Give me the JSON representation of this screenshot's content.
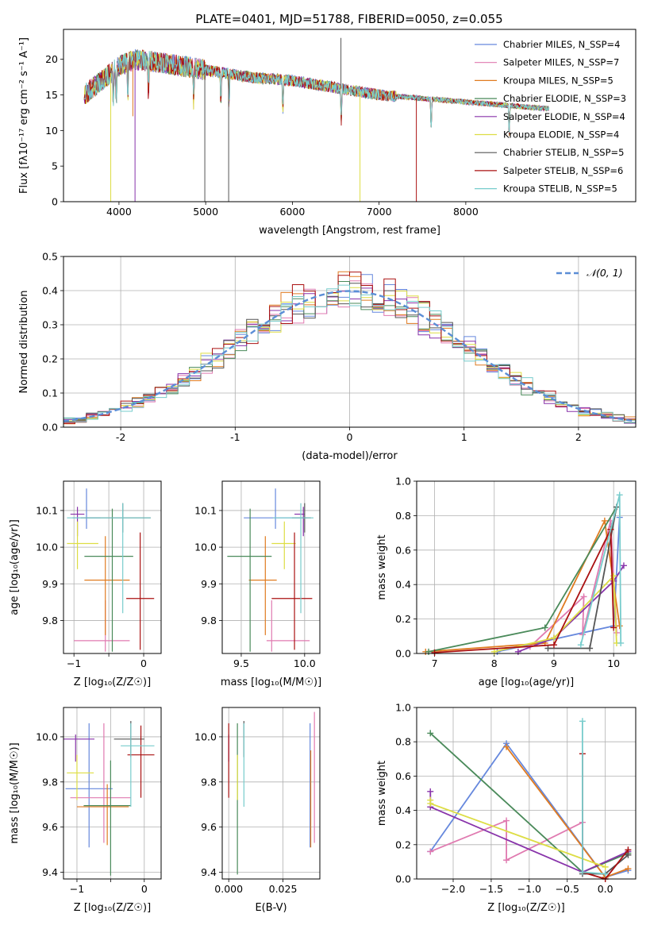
{
  "figure": {
    "title": "PLATE=0401, MJD=51788, FIBERID=0050, z=0.055"
  },
  "colors": [
    "#6688dd",
    "#e07ab0",
    "#e07b20",
    "#4a8a5a",
    "#8833aa",
    "#dddd44",
    "#555555",
    "#aa1111",
    "#77cccc"
  ],
  "chart_data": [
    {
      "id": "spectrum",
      "type": "line",
      "xlabel": "wavelength [Angstrom, rest frame]",
      "ylabel": "Flux [fλ10⁻¹⁷ erg cm⁻² s⁻¹ A⁻¹]",
      "xlim": [
        3360,
        9960
      ],
      "ylim": [
        0,
        24.2
      ],
      "xticks": [
        4000,
        5000,
        6000,
        7000,
        8000
      ],
      "yticks": [
        0,
        5,
        10,
        15,
        20
      ],
      "grid": false,
      "legend_position": "top-right",
      "continuum": {
        "x": [
          3600,
          3800,
          4000,
          4200,
          4500,
          5000,
          5500,
          6000,
          6500,
          7000,
          7500,
          8000,
          8500,
          9000,
          9960
        ],
        "y": [
          15,
          17,
          19,
          20,
          19.5,
          18.5,
          17.5,
          17,
          16,
          15,
          14.5,
          14,
          13.5,
          13,
          12
        ]
      },
      "series": [
        {
          "name": "Chabrier MILES, N_SSP=4"
        },
        {
          "name": "Salpeter MILES, N_SSP=7"
        },
        {
          "name": "Kroupa MILES, N_SSP=5"
        },
        {
          "name": "Chabrier ELODIE, N_SSP=3"
        },
        {
          "name": "Salpeter ELODIE, N_SSP=4"
        },
        {
          "name": "Kroupa ELODIE, N_SSP=4"
        },
        {
          "name": "Chabrier STELIB, N_SSP=5"
        },
        {
          "name": "Salpeter STELIB, N_SSP=6"
        },
        {
          "name": "Kroupa STELIB, N_SSP=5"
        }
      ]
    },
    {
      "id": "residuals",
      "type": "step",
      "xlabel": "(data-model)/error",
      "ylabel": "Normed distribution",
      "xlim": [
        -2.5,
        2.5
      ],
      "ylim": [
        0,
        0.5
      ],
      "xticks": [
        -2,
        -1,
        0,
        1,
        2
      ],
      "yticks": [
        0.0,
        0.1,
        0.2,
        0.3,
        0.4,
        0.5
      ],
      "grid": true,
      "legend_position": "top-right",
      "reference": {
        "name": "𝒩(0, 1)",
        "mean": 0,
        "sigma": 1
      },
      "bin_width": 0.1
    },
    {
      "id": "age_vs_Z",
      "type": "errorbar",
      "xlabel": "Z [log₁₀(Z/Z☉)]",
      "ylabel": "age  [log₁₀(age/yr)]",
      "xlim": [
        -1.15,
        0.25
      ],
      "ylim": [
        9.71,
        10.18
      ],
      "xticks": [
        -1,
        -0.5,
        0
      ],
      "xticklabels": [
        "−1",
        "",
        "0"
      ],
      "yticks": [
        9.8,
        9.9,
        10.0,
        10.1
      ],
      "yticklabels": [
        "9.8",
        "9.9",
        "10.0",
        "10.1"
      ],
      "grid": true,
      "points": [
        {
          "x": -0.82,
          "xerr": [
            0.2,
            0.2
          ],
          "y": 10.08,
          "yerr": [
            0.03,
            0.08
          ]
        },
        {
          "x": -0.55,
          "xerr": [
            0.45,
            0.35
          ],
          "y": 9.745,
          "yerr": [
            0.03,
            0.11
          ]
        },
        {
          "x": -0.55,
          "xerr": [
            0.3,
            0.35
          ],
          "y": 9.91,
          "yerr": [
            0.15,
            0.12
          ]
        },
        {
          "x": -0.45,
          "xerr": [
            0.4,
            0.3
          ],
          "y": 9.975,
          "yerr": [
            0.26,
            0.13
          ]
        },
        {
          "x": -0.95,
          "xerr": [
            0.1,
            0.1
          ],
          "y": 10.09,
          "yerr": [
            0.06,
            0.02
          ]
        },
        {
          "x": -0.95,
          "xerr": [
            0.15,
            0.3
          ],
          "y": 10.01,
          "yerr": [
            0.07,
            0.06
          ]
        },
        {
          "x": -0.3,
          "xerr": [
            0.6,
            0.4
          ],
          "y": 10.08,
          "yerr": [
            0.04,
            0.04
          ]
        },
        {
          "x": -0.05,
          "xerr": [
            0.2,
            0.2
          ],
          "y": 9.86,
          "yerr": [
            0.14,
            0.18
          ]
        },
        {
          "x": -0.3,
          "xerr": [
            0.8,
            0.4
          ],
          "y": 10.08,
          "yerr": [
            0.26,
            0.04
          ]
        }
      ]
    },
    {
      "id": "age_vs_mass",
      "type": "errorbar",
      "xlabel": "mass [log₁₀(M/M☉)]",
      "ylabel": "",
      "xlim": [
        9.35,
        10.12
      ],
      "ylim": [
        9.71,
        10.18
      ],
      "xticks": [
        9.5,
        10.0
      ],
      "xticklabels": [
        "9.5",
        "10.0"
      ],
      "yticks": [
        9.8,
        9.9,
        10.0,
        10.1
      ],
      "yticklabels": [
        "9.8",
        "9.9",
        "10.0",
        "10.1"
      ],
      "grid": true,
      "points": [
        {
          "x": 9.77,
          "xerr": [
            0.25,
            0.25
          ],
          "y": 10.08,
          "yerr": [
            0.03,
            0.08
          ]
        },
        {
          "x": 9.74,
          "xerr": [
            0.04,
            0.3
          ],
          "y": 9.745,
          "yerr": [
            0.03,
            0.11
          ]
        },
        {
          "x": 9.69,
          "xerr": [
            0.13,
            0.09
          ],
          "y": 9.91,
          "yerr": [
            0.15,
            0.12
          ]
        },
        {
          "x": 9.57,
          "xerr": [
            0.18,
            0.17
          ],
          "y": 9.975,
          "yerr": [
            0.26,
            0.13
          ]
        },
        {
          "x": 9.99,
          "xerr": [
            0.07,
            0.01
          ],
          "y": 10.09,
          "yerr": [
            0.06,
            0.02
          ]
        },
        {
          "x": 9.84,
          "xerr": [
            0.1,
            0.09
          ],
          "y": 10.01,
          "yerr": [
            0.07,
            0.06
          ]
        },
        {
          "x": 10.0,
          "xerr": [
            0.1,
            0.05
          ],
          "y": 10.08,
          "yerr": [
            0.04,
            0.04
          ]
        },
        {
          "x": 9.92,
          "xerr": [
            0.18,
            0.14
          ],
          "y": 9.86,
          "yerr": [
            0.14,
            0.18
          ]
        },
        {
          "x": 9.97,
          "xerr": [
            0.22,
            0.1
          ],
          "y": 10.08,
          "yerr": [
            0.26,
            0.04
          ]
        }
      ]
    },
    {
      "id": "weight_vs_age",
      "type": "line",
      "xlabel": "age  [log₁₀(age/yr)]",
      "ylabel": "mass weight",
      "xlim": [
        6.7,
        10.37
      ],
      "ylim": [
        0,
        1.0
      ],
      "xticks": [
        7,
        8,
        9,
        10
      ],
      "xticklabels": [
        "7",
        "8",
        "9",
        "10"
      ],
      "yticks": [
        0.0,
        0.2,
        0.4,
        0.6,
        0.8,
        1.0
      ],
      "yticklabels": [
        "0.0",
        "0.2",
        "0.4",
        "0.6",
        "0.8",
        "1.0"
      ],
      "grid": true,
      "series": [
        {
          "x": [
            8.05,
            10.0,
            10.1
          ],
          "y": [
            0.01,
            0.16,
            0.79
          ]
        },
        {
          "x": [
            8.6,
            9.5,
            9.48,
            9.95,
            10.05
          ],
          "y": [
            0.04,
            0.33,
            0.11,
            0.77,
            0.12
          ]
        },
        {
          "x": [
            6.85,
            8.85,
            9.85,
            10.1
          ],
          "y": [
            0.01,
            0.06,
            0.77,
            0.16
          ]
        },
        {
          "x": [
            6.9,
            8.85,
            10.05
          ],
          "y": [
            0.01,
            0.15,
            0.85
          ]
        },
        {
          "x": [
            8.4,
            9.0,
            10.0,
            10.17
          ],
          "y": [
            0.01,
            0.09,
            0.42,
            0.51
          ]
        },
        {
          "x": [
            8.0,
            9.0,
            10.0,
            10.05
          ],
          "y": [
            0.01,
            0.09,
            0.45,
            0.06
          ]
        },
        {
          "x": [
            8.9,
            9.6,
            10.05
          ],
          "y": [
            0.03,
            0.03,
            0.85
          ]
        },
        {
          "x": [
            7.0,
            9.0,
            9.95,
            10.0
          ],
          "y": [
            0.005,
            0.05,
            0.72,
            0.15
          ]
        },
        {
          "x": [
            9.45,
            10.1,
            10.12
          ],
          "y": [
            0.05,
            0.92,
            0.06
          ]
        }
      ]
    },
    {
      "id": "mass_vs_Z",
      "type": "errorbar",
      "xlabel": "Z [log₁₀(Z/Z☉)]",
      "ylabel": "mass [log₁₀(M/M☉)]",
      "xlim": [
        -1.2,
        0.25
      ],
      "ylim": [
        9.37,
        10.13
      ],
      "xticks": [
        -1,
        -0.5,
        0
      ],
      "xticklabels": [
        "−1",
        "",
        "0"
      ],
      "yticks": [
        9.4,
        9.6,
        9.8,
        10.0
      ],
      "yticklabels": [
        "9.4",
        "9.6",
        "9.8",
        "10.0"
      ],
      "grid": true,
      "points": [
        {
          "x": -0.82,
          "xerr": [
            0.35,
            0.35
          ],
          "y": 9.77,
          "yerr": [
            0.26,
            0.29
          ]
        },
        {
          "x": -0.6,
          "xerr": [
            0.5,
            0.4
          ],
          "y": 9.73,
          "yerr": [
            0.2,
            0.33
          ]
        },
        {
          "x": -0.55,
          "xerr": [
            0.45,
            0.32
          ],
          "y": 9.69,
          "yerr": [
            0.17,
            0.1
          ]
        },
        {
          "x": -0.5,
          "xerr": [
            0.4,
            0.3
          ],
          "y": 9.695,
          "yerr": [
            0.31,
            0.2
          ]
        },
        {
          "x": -1.02,
          "xerr": [
            0.18,
            0.28
          ],
          "y": 9.99,
          "yerr": [
            0.1,
            0.02
          ]
        },
        {
          "x": -1.0,
          "xerr": [
            0.15,
            0.25
          ],
          "y": 9.84,
          "yerr": [
            0.12,
            0.08
          ]
        },
        {
          "x": -0.2,
          "xerr": [
            0.25,
            0.2
          ],
          "y": 9.99,
          "yerr": [
            0.08,
            0.08
          ]
        },
        {
          "x": -0.05,
          "xerr": [
            0.2,
            0.2
          ],
          "y": 9.92,
          "yerr": [
            0.19,
            0.13
          ]
        },
        {
          "x": -0.2,
          "xerr": [
            0.15,
            0.35
          ],
          "y": 9.96,
          "yerr": [
            0.27,
            0.1
          ]
        }
      ]
    },
    {
      "id": "mass_vs_ebv",
      "type": "errorbar",
      "xlabel": "E(B-V)",
      "ylabel": "",
      "xlim": [
        -0.003,
        0.042
      ],
      "ylim": [
        9.37,
        10.13
      ],
      "xticks": [
        0.0,
        0.025
      ],
      "xticklabels": [
        "0.000",
        "0.025"
      ],
      "yticks": [
        9.4,
        9.6,
        9.8,
        10.0
      ],
      "yticklabels": [
        "9.4",
        "9.6",
        "9.8",
        "10.0"
      ],
      "grid": true,
      "points": [
        {
          "x": 0.0375,
          "y": 9.77,
          "yerr": [
            0.26,
            0.29
          ]
        },
        {
          "x": 0.0395,
          "y": 9.73,
          "yerr": [
            0.2,
            0.38
          ]
        },
        {
          "x": 0.0378,
          "y": 9.73,
          "yerr": [
            0.22,
            0.21
          ]
        },
        {
          "x": 0.004,
          "y": 9.7,
          "yerr": [
            0.31,
            0.36
          ]
        },
        {
          "x": 0.0,
          "y": 9.99,
          "yerr": [
            0.1,
            0.02
          ]
        },
        {
          "x": 0.004,
          "y": 9.84,
          "yerr": [
            0.12,
            0.08
          ]
        },
        {
          "x": 0.007,
          "y": 9.99,
          "yerr": [
            0.08,
            0.08
          ]
        },
        {
          "x": 0.0,
          "y": 9.92,
          "yerr": [
            0.19,
            0.14
          ]
        },
        {
          "x": 0.007,
          "y": 9.96,
          "yerr": [
            0.27,
            0.1
          ]
        }
      ]
    },
    {
      "id": "weight_vs_Z",
      "type": "line",
      "xlabel": "Z [log₁₀(Z/Z☉)]",
      "ylabel": "mass weight",
      "xlim": [
        -2.48,
        0.4
      ],
      "ylim": [
        0,
        1.0
      ],
      "xticks": [
        -2.0,
        -1.5,
        -1.0,
        -0.5,
        0.0
      ],
      "xticklabels": [
        "−2.0",
        "−1.5",
        "−1.0",
        "−0.5",
        "0.0"
      ],
      "yticks": [
        0.0,
        0.2,
        0.4,
        0.6,
        0.8,
        1.0
      ],
      "yticklabels": [
        "0.0",
        "0.2",
        "0.4",
        "0.6",
        "0.8",
        "1.0"
      ],
      "grid": true,
      "series": [
        {
          "x": [
            -2.3,
            -1.3,
            0.0,
            0.3
          ],
          "y": [
            0.16,
            0.79,
            0.01,
            0.05
          ]
        },
        {
          "x": [
            -2.3,
            -1.3,
            -1.3,
            -0.3,
            -0.3
          ],
          "y": [
            0.16,
            0.34,
            0.11,
            0.33,
            0.04
          ]
        },
        {
          "x": [
            -1.3,
            0.0,
            0.3
          ],
          "y": [
            0.77,
            0.01,
            0.06
          ]
        },
        {
          "x": [
            -2.3,
            -0.3,
            0.3
          ],
          "y": [
            0.85,
            0.04,
            0.15
          ]
        },
        {
          "x": [
            -2.3,
            -2.3,
            -0.3,
            0.3
          ],
          "y": [
            0.51,
            0.42,
            0.04,
            0.16
          ]
        },
        {
          "x": [
            -2.3,
            -2.3,
            0.0
          ],
          "y": [
            0.46,
            0.44,
            0.07
          ]
        },
        {
          "x": [
            -0.3,
            0.0,
            0.3
          ],
          "y": [
            0.03,
            0.03,
            0.14
          ]
        },
        {
          "x": [
            -0.3,
            -0.3,
            0.0,
            0.3
          ],
          "y": [
            0.73,
            0.04,
            0.0,
            0.17
          ]
        },
        {
          "x": [
            -0.3,
            -0.3,
            0.0
          ],
          "y": [
            0.92,
            0.04,
            0.03
          ]
        }
      ]
    }
  ]
}
